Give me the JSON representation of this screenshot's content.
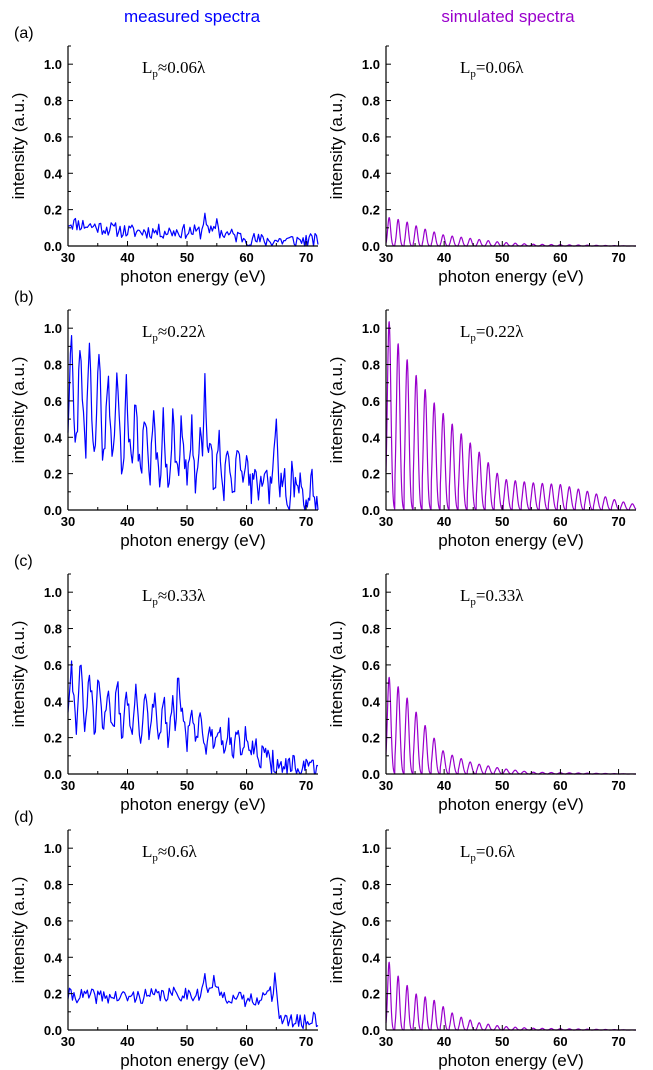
{
  "column_headers": {
    "left": "measured spectra",
    "right": "simulated spectra",
    "left_color": "#0000ff",
    "right_color": "#9900cc"
  },
  "panel_labels": [
    "(a)",
    "(b)",
    "(c)",
    "(d)"
  ],
  "colors": {
    "measured": "#0000ff",
    "simulated": "#9900cc",
    "axis": "#000000"
  },
  "chart_data": [
    {
      "type": "line",
      "panel": "(a)",
      "column": "measured",
      "annotation": {
        "main": "L",
        "sub": "p",
        "rest": "≈0.06λ"
      },
      "xlabel": "photon energy (eV)",
      "ylabel": "intensity (a.u.)",
      "xlim": [
        30,
        72
      ],
      "ylim": [
        0,
        1.1
      ],
      "xticks": [
        30,
        40,
        50,
        60,
        70
      ],
      "yticks": [
        0.0,
        0.2,
        0.4,
        0.6,
        0.8,
        1.0
      ],
      "series": [
        {
          "start": 30,
          "end": 72,
          "step": 0.25,
          "envelope": [
            [
              30,
              0.13
            ],
            [
              40,
              0.08
            ],
            [
              50,
              0.08
            ],
            [
              56,
              0.07
            ],
            [
              62,
              0.03
            ],
            [
              72,
              0.03
            ]
          ],
          "noise": 0.04,
          "peaks": [
            [
              53,
              0.18
            ],
            [
              55,
              0.15
            ]
          ],
          "seed": 11
        }
      ]
    },
    {
      "type": "line",
      "panel": "(a)",
      "column": "simulated",
      "annotation": {
        "main": "L",
        "sub": "p",
        "rest": "=0.06λ"
      },
      "xlabel": "photon energy (eV)",
      "ylabel": "intensity (a.u.)",
      "xlim": [
        30,
        73
      ],
      "ylim": [
        0,
        1.1
      ],
      "xticks": [
        30,
        40,
        50,
        60,
        70
      ],
      "yticks": [
        0.0,
        0.2,
        0.4,
        0.6,
        0.8,
        1.0
      ],
      "series": [
        {
          "start": 30,
          "end": 73,
          "step": 0.05,
          "harmonic_spacing": 1.55,
          "harmonic_width": 0.25,
          "envelope": [
            [
              30,
              0.16
            ],
            [
              33,
              0.14
            ],
            [
              36,
              0.1
            ],
            [
              40,
              0.06
            ],
            [
              45,
              0.04
            ],
            [
              50,
              0.02
            ],
            [
              55,
              0.01
            ],
            [
              73,
              0.0
            ]
          ]
        }
      ]
    },
    {
      "type": "line",
      "panel": "(b)",
      "column": "measured",
      "annotation": {
        "main": "L",
        "sub": "p",
        "rest": "≈0.22λ"
      },
      "xlabel": "photon energy (eV)",
      "ylabel": "intensity (a.u.)",
      "xlim": [
        30,
        72
      ],
      "ylim": [
        0,
        1.1
      ],
      "xticks": [
        30,
        40,
        50,
        60,
        70
      ],
      "yticks": [
        0.0,
        0.2,
        0.4,
        0.6,
        0.8,
        1.0
      ],
      "series": [
        {
          "start": 30,
          "end": 72,
          "step": 0.2,
          "harmonic_spacing": 1.55,
          "harmonic_width": 0.3,
          "envelope": [
            [
              30,
              1.0
            ],
            [
              35,
              0.85
            ],
            [
              40,
              0.65
            ],
            [
              45,
              0.5
            ],
            [
              50,
              0.45
            ],
            [
              55,
              0.4
            ],
            [
              60,
              0.3
            ],
            [
              65,
              0.25
            ],
            [
              70,
              0.15
            ],
            [
              72,
              0.12
            ]
          ],
          "baseline": 0.35,
          "noise": 0.1,
          "peaks": [
            [
              53,
              0.75
            ],
            [
              65,
              0.5
            ]
          ],
          "seed": 21
        }
      ]
    },
    {
      "type": "line",
      "panel": "(b)",
      "column": "simulated",
      "annotation": {
        "main": "L",
        "sub": "p",
        "rest": "=0.22λ"
      },
      "xlabel": "photon energy (eV)",
      "ylabel": "intensity (a.u.)",
      "xlim": [
        30,
        73
      ],
      "ylim": [
        0,
        1.1
      ],
      "xticks": [
        30,
        40,
        50,
        60,
        70
      ],
      "yticks": [
        0.0,
        0.2,
        0.4,
        0.6,
        0.8,
        1.0
      ],
      "series": [
        {
          "start": 30,
          "end": 73,
          "step": 0.05,
          "harmonic_spacing": 1.55,
          "harmonic_width": 0.3,
          "envelope": [
            [
              30,
              1.08
            ],
            [
              32,
              0.92
            ],
            [
              35,
              0.75
            ],
            [
              38,
              0.6
            ],
            [
              42,
              0.45
            ],
            [
              46,
              0.32
            ],
            [
              50,
              0.17
            ],
            [
              55,
              0.15
            ],
            [
              60,
              0.14
            ],
            [
              65,
              0.1
            ],
            [
              70,
              0.05
            ],
            [
              73,
              0.03
            ]
          ]
        }
      ]
    },
    {
      "type": "line",
      "panel": "(c)",
      "column": "measured",
      "annotation": {
        "main": "L",
        "sub": "p",
        "rest": "≈0.33λ"
      },
      "xlabel": "photon energy (eV)",
      "ylabel": "intensity (a.u.)",
      "xlim": [
        30,
        72
      ],
      "ylim": [
        0,
        1.1
      ],
      "xticks": [
        30,
        40,
        50,
        60,
        70
      ],
      "yticks": [
        0.0,
        0.2,
        0.4,
        0.6,
        0.8,
        1.0
      ],
      "series": [
        {
          "start": 30,
          "end": 72,
          "step": 0.2,
          "harmonic_spacing": 1.55,
          "harmonic_width": 0.35,
          "envelope": [
            [
              30,
              0.6
            ],
            [
              35,
              0.5
            ],
            [
              40,
              0.45
            ],
            [
              45,
              0.4
            ],
            [
              50,
              0.35
            ],
            [
              55,
              0.28
            ],
            [
              60,
              0.22
            ],
            [
              63,
              0.15
            ],
            [
              65,
              0.05
            ],
            [
              72,
              0.04
            ]
          ],
          "baseline": 0.45,
          "noise": 0.06,
          "peaks": [
            [
              48.5,
              0.57
            ]
          ],
          "seed": 31
        }
      ]
    },
    {
      "type": "line",
      "panel": "(c)",
      "column": "simulated",
      "annotation": {
        "main": "L",
        "sub": "p",
        "rest": "=0.33λ"
      },
      "xlabel": "photon energy (eV)",
      "ylabel": "intensity (a.u.)",
      "xlim": [
        30,
        73
      ],
      "ylim": [
        0,
        1.1
      ],
      "xticks": [
        30,
        40,
        50,
        60,
        70
      ],
      "yticks": [
        0.0,
        0.2,
        0.4,
        0.6,
        0.8,
        1.0
      ],
      "series": [
        {
          "start": 30,
          "end": 73,
          "step": 0.05,
          "harmonic_spacing": 1.55,
          "harmonic_width": 0.3,
          "envelope": [
            [
              30,
              0.55
            ],
            [
              33,
              0.45
            ],
            [
              36,
              0.3
            ],
            [
              40,
              0.12
            ],
            [
              45,
              0.06
            ],
            [
              50,
              0.03
            ],
            [
              55,
              0.01
            ],
            [
              73,
              0.0
            ]
          ]
        }
      ]
    },
    {
      "type": "line",
      "panel": "(d)",
      "column": "measured",
      "annotation": {
        "main": "L",
        "sub": "p",
        "rest": "≈0.6λ"
      },
      "xlabel": "photon energy (eV)",
      "ylabel": "intensity (a.u.)",
      "xlim": [
        30,
        72
      ],
      "ylim": [
        0,
        1.1
      ],
      "xticks": [
        30,
        40,
        50,
        60,
        70
      ],
      "yticks": [
        0.0,
        0.2,
        0.4,
        0.6,
        0.8,
        1.0
      ],
      "series": [
        {
          "start": 30,
          "end": 72,
          "step": 0.25,
          "envelope": [
            [
              30,
              0.19
            ],
            [
              40,
              0.18
            ],
            [
              50,
              0.2
            ],
            [
              55,
              0.2
            ],
            [
              60,
              0.16
            ],
            [
              64,
              0.2
            ],
            [
              66,
              0.05
            ],
            [
              72,
              0.04
            ]
          ],
          "noise": 0.04,
          "peaks": [
            [
              53,
              0.31
            ],
            [
              54.5,
              0.3
            ],
            [
              64.8,
              0.32
            ],
            [
              71.3,
              0.1
            ]
          ],
          "seed": 41
        }
      ]
    },
    {
      "type": "line",
      "panel": "(d)",
      "column": "simulated",
      "annotation": {
        "main": "L",
        "sub": "p",
        "rest": "=0.6λ"
      },
      "xlabel": "photon energy (eV)",
      "ylabel": "intensity (a.u.)",
      "xlim": [
        30,
        73
      ],
      "ylim": [
        0,
        1.1
      ],
      "xticks": [
        30,
        40,
        50,
        60,
        70
      ],
      "yticks": [
        0.0,
        0.2,
        0.4,
        0.6,
        0.8,
        1.0
      ],
      "series": [
        {
          "start": 30,
          "end": 73,
          "step": 0.05,
          "harmonic_spacing": 1.55,
          "harmonic_width": 0.25,
          "envelope": [
            [
              30,
              0.4
            ],
            [
              32,
              0.3
            ],
            [
              35,
              0.2
            ],
            [
              38,
              0.17
            ],
            [
              42,
              0.08
            ],
            [
              46,
              0.04
            ],
            [
              50,
              0.02
            ],
            [
              55,
              0.01
            ],
            [
              73,
              0.0
            ]
          ]
        }
      ]
    }
  ]
}
